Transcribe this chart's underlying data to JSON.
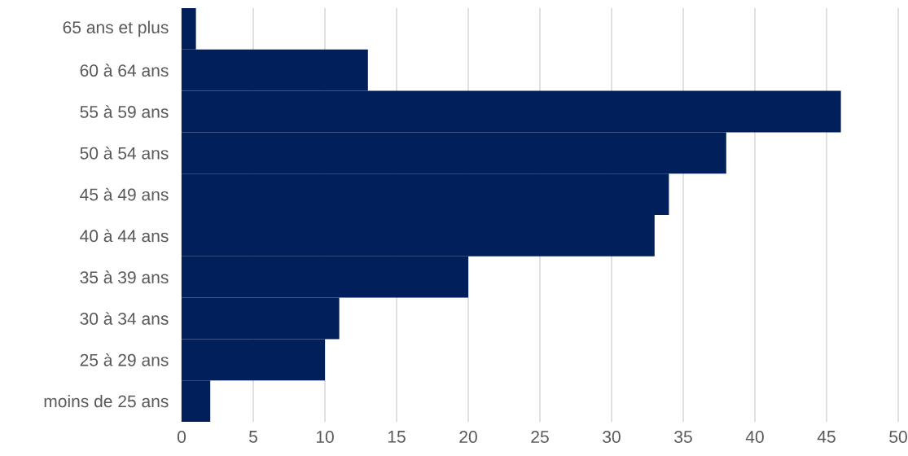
{
  "chart_data": {
    "type": "bar",
    "orientation": "horizontal",
    "categories": [
      "65 ans et plus",
      "60 à 64 ans",
      "55 à 59 ans",
      "50 à 54 ans",
      "45 à 49 ans",
      "40 à 44 ans",
      "35 à 39 ans",
      "30 à 34 ans",
      "25 à 29 ans",
      "moins de 25 ans"
    ],
    "values": [
      1,
      13,
      46,
      38,
      34,
      33,
      20,
      11,
      10,
      2
    ],
    "color": "#001f5b",
    "xlim": [
      0,
      50
    ],
    "xticks": [
      0,
      5,
      10,
      15,
      20,
      25,
      30,
      35,
      40,
      45,
      50
    ],
    "grid": "x"
  }
}
